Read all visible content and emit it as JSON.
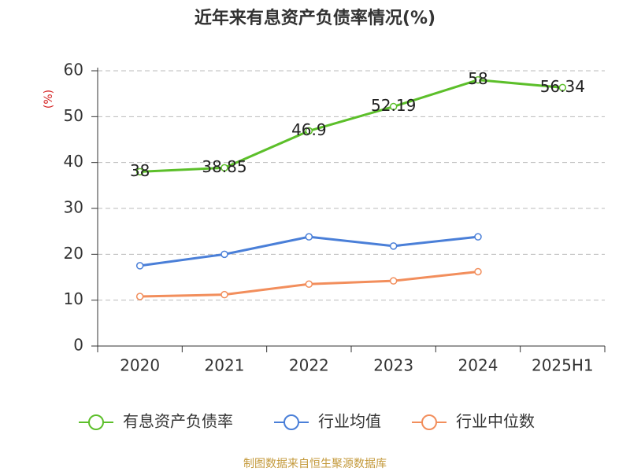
{
  "chart_data": {
    "type": "line",
    "title": "近年来有息资产负债率情况(%)",
    "y_label": "(%)",
    "source": "制图数据来自恒生聚源数据库",
    "categories": [
      "2020",
      "2021",
      "2022",
      "2023",
      "2024",
      "2025H1"
    ],
    "series": [
      {
        "name": "有息资产负债率",
        "color": "#5cbf2a",
        "values": [
          38,
          38.85,
          46.9,
          52.19,
          58,
          56.34
        ],
        "show_labels": true
      },
      {
        "name": "行业均值",
        "color": "#4a7fd8",
        "values": [
          17.5,
          20,
          23.8,
          21.8,
          23.8,
          null
        ]
      },
      {
        "name": "行业中位数",
        "color": "#f28e5c",
        "values": [
          10.8,
          11.2,
          13.5,
          14.2,
          16.2,
          null
        ]
      }
    ],
    "ylim": [
      0,
      60
    ],
    "yticks": [
      0,
      10,
      20,
      30,
      40,
      50,
      60
    ],
    "grid": true,
    "legend": "bottom"
  }
}
